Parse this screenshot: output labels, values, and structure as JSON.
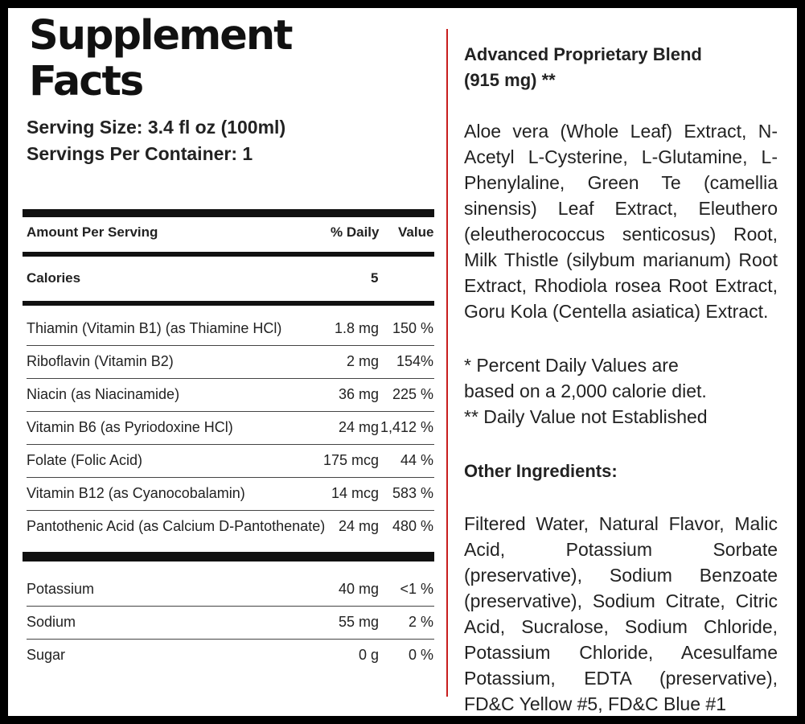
{
  "title": {
    "line1": "Supplement",
    "line2": "Facts"
  },
  "serving_size": "Serving Size: 3.4 fl oz (100ml)",
  "servings_per_container": "Servings Per Container: 1",
  "table_header": {
    "amount": "Amount Per Serving",
    "daily": "% Daily",
    "value": "Value"
  },
  "calories": {
    "label": "Calories",
    "value": "5"
  },
  "vitamins": [
    {
      "name": "Thiamin (Vitamin B1) (as Thiamine HCl)",
      "amount": "1.8 mg",
      "dv": "150 %"
    },
    {
      "name": "Riboflavin (Vitamin B2)",
      "amount": "2 mg",
      "dv": "154%"
    },
    {
      "name": "Niacin (as Niacinamide)",
      "amount": "36 mg",
      "dv": "225 %"
    },
    {
      "name": "Vitamin B6 (as Pyriodoxine HCl)",
      "amount": "24 mg",
      "dv": "1,412 %"
    },
    {
      "name": "Folate (Folic Acid)",
      "amount": "175 mcg",
      "dv": "44 %"
    },
    {
      "name": "Vitamin B12 (as Cyanocobalamin)",
      "amount": "14 mcg",
      "dv": "583 %"
    },
    {
      "name": "Pantothenic Acid (as Calcium D-Pantothenate)",
      "amount": "24 mg",
      "dv": "480 %"
    }
  ],
  "minerals": [
    {
      "name": "Potassium",
      "amount": "40 mg",
      "dv": "<1 %"
    },
    {
      "name": "Sodium",
      "amount": "55 mg",
      "dv": "2 %"
    },
    {
      "name": "Sugar",
      "amount": "0 g",
      "dv": "0 %"
    }
  ],
  "blend": {
    "title_line1": "Advanced Proprietary Blend",
    "title_line2": "(915 mg) **",
    "ingredients": "Aloe vera (Whole Leaf) Extract, N-Acetyl L-Cysterine, L-Glutamine, L-Phenylaline, Green Te (camellia sinensis) Leaf Extract, Eleuthero (eleutherococcus senticosus) Root, Milk Thistle (silybum marianum) Root Extract, Rhodiola rosea Root Extract, Goru Kola (Centella asiatica) Extract."
  },
  "footnotes": {
    "line1": "* Percent Daily Values are",
    "line2": "based on a 2,000 calorie diet.",
    "line3": "** Daily Value not Established"
  },
  "other_ingredients": {
    "title": "Other Ingredients:",
    "text": "Filtered Water, Natural Flavor, Malic Acid, Potassium Sorbate (preservative), Sodium Benzoate (preservative), Sodium Citrate, Citric Acid, Sucralose, Sodium Chloride, Potassium Chloride, Acesulfame Potassium, EDTA (preservative), FD&C Yellow #5, FD&C Blue #1"
  },
  "colors": {
    "divider": "#c81e1e",
    "frame": "#000000",
    "background": "#ffffff"
  }
}
